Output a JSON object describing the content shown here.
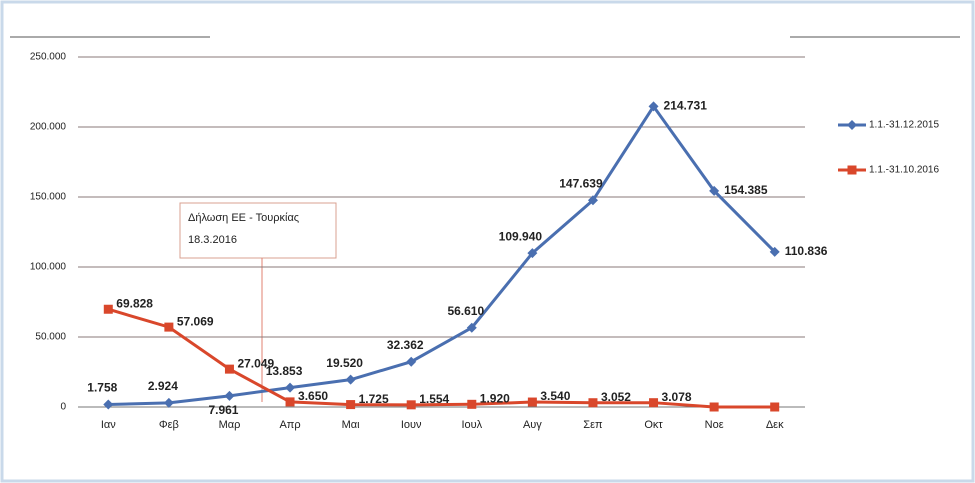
{
  "chart_data": {
    "type": "line",
    "categories": [
      "Ιαν",
      "Φεβ",
      "Μαρ",
      "Απρ",
      "Μαι",
      "Ιουν",
      "Ιουλ",
      "Αυγ",
      "Σεπ",
      "Οκτ",
      "Νοε",
      "Δεκ"
    ],
    "series": [
      {
        "name": "1.1.-31.12.2015",
        "color": "#4a6fb0",
        "marker": "diamond",
        "values": [
          1758,
          2924,
          7961,
          13853,
          19520,
          32362,
          56610,
          109940,
          147639,
          214731,
          154385,
          110836
        ],
        "value_labels": [
          "1.758",
          "2.924",
          "7.961",
          "13.853",
          "19.520",
          "32.362",
          "56.610",
          "109.940",
          "147.639",
          "214.731",
          "154.385",
          "110.836"
        ]
      },
      {
        "name": "1.1.-31.10.2016",
        "color": "#d9472b",
        "marker": "square",
        "values": [
          69828,
          57069,
          27049,
          3650,
          1725,
          1554,
          1920,
          3540,
          3052,
          3078,
          0,
          0
        ],
        "value_labels": [
          "69.828",
          "57.069",
          "27.049",
          "3.650",
          "1.725",
          "1.554",
          "1.920",
          "3.540",
          "3.052",
          "3.078",
          null,
          null
        ]
      }
    ],
    "ylim": [
      0,
      250000
    ],
    "yticks": [
      {
        "value": 0,
        "label": "0"
      },
      {
        "value": 50000,
        "label": "50.000"
      },
      {
        "value": 100000,
        "label": "100.000"
      },
      {
        "value": 150000,
        "label": "150.000"
      },
      {
        "value": 200000,
        "label": "200.000"
      },
      {
        "value": 250000,
        "label": "250.000"
      }
    ],
    "grid": true,
    "legend": "right",
    "annotation": [
      "Δήλωση ΕΕ - Τουρκίας",
      "18.3.2016"
    ]
  }
}
